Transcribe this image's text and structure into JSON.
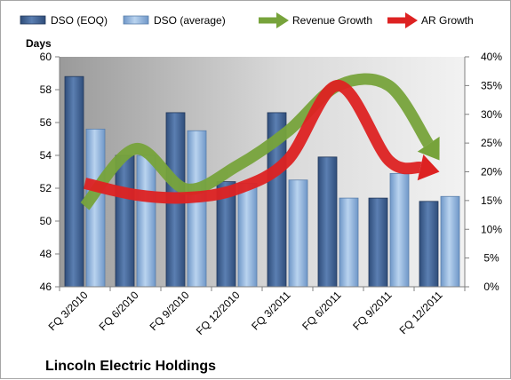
{
  "chart_data": {
    "type": "bar",
    "title": "",
    "footer_title": "Lincoln Electric Holdings",
    "ylabel_left": "Days",
    "categories": [
      "FQ 3/2010",
      "FQ 6/2010",
      "FQ 9/2010",
      "FQ 12/2010",
      "FQ 3/2011",
      "FQ 6/2011",
      "FQ 9/2011",
      "FQ 12/2011"
    ],
    "series": [
      {
        "name": "DSO (EOQ)",
        "values": [
          58.8,
          54.0,
          56.6,
          52.4,
          56.6,
          53.9,
          51.4,
          51.2
        ],
        "color": "#4f6f9f"
      },
      {
        "name": "DSO (average)",
        "values": [
          55.6,
          54.0,
          55.5,
          52.3,
          52.5,
          51.4,
          52.9,
          51.5
        ],
        "color": "#8fb3dc"
      }
    ],
    "arrow_series": [
      {
        "name": "Revenue Growth",
        "color": "#77a33b",
        "axis": "right",
        "values": [
          14,
          24,
          17,
          21,
          27,
          35,
          35,
          22
        ]
      },
      {
        "name": "AR Growth",
        "color": "#dd2222",
        "axis": "right",
        "values": [
          18,
          16,
          15.5,
          17,
          22,
          35,
          22,
          20
        ]
      }
    ],
    "ylim_left": [
      46,
      60
    ],
    "yticks_left": [
      "46",
      "48",
      "50",
      "52",
      "54",
      "56",
      "58",
      "60"
    ],
    "ylim_right": [
      0,
      40
    ],
    "yticks_right": [
      "0%",
      "5%",
      "10%",
      "15%",
      "20%",
      "25%",
      "30%",
      "35%",
      "40%"
    ],
    "grid": false,
    "legend_position": "top"
  }
}
